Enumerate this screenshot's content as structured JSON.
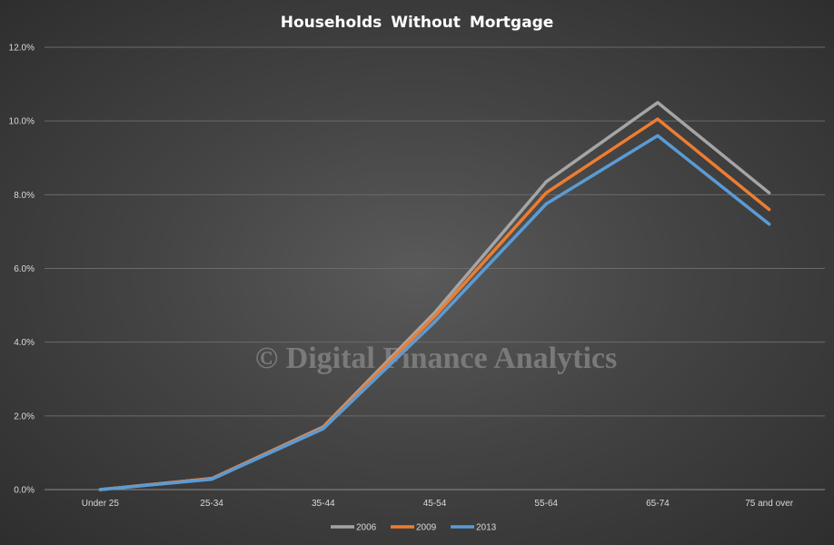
{
  "chart_data": {
    "type": "line",
    "title": "Households  Without  Mortgage",
    "categories": [
      "Under 25",
      "25-34",
      "35-44",
      "45-54",
      "55-64",
      "65-74",
      "75 and over"
    ],
    "ylim": [
      0,
      12
    ],
    "yticks": [
      "0.0%",
      "2.0%",
      "4.0%",
      "6.0%",
      "8.0%",
      "10.0%",
      "12.0%"
    ],
    "grid": true,
    "legend_position": "bottom",
    "series": [
      {
        "name": "2006",
        "color": "#a5a5a5",
        "values": [
          0.0,
          0.3,
          1.7,
          4.8,
          8.35,
          10.5,
          8.05
        ]
      },
      {
        "name": "2009",
        "color": "#ed7d31",
        "values": [
          0.0,
          0.3,
          1.68,
          4.7,
          8.05,
          10.05,
          7.6
        ]
      },
      {
        "name": "2013",
        "color": "#5b9bd5",
        "values": [
          0.0,
          0.28,
          1.65,
          4.55,
          7.75,
          9.6,
          7.2
        ]
      }
    ]
  },
  "watermark": "© Digital Finance Analytics"
}
